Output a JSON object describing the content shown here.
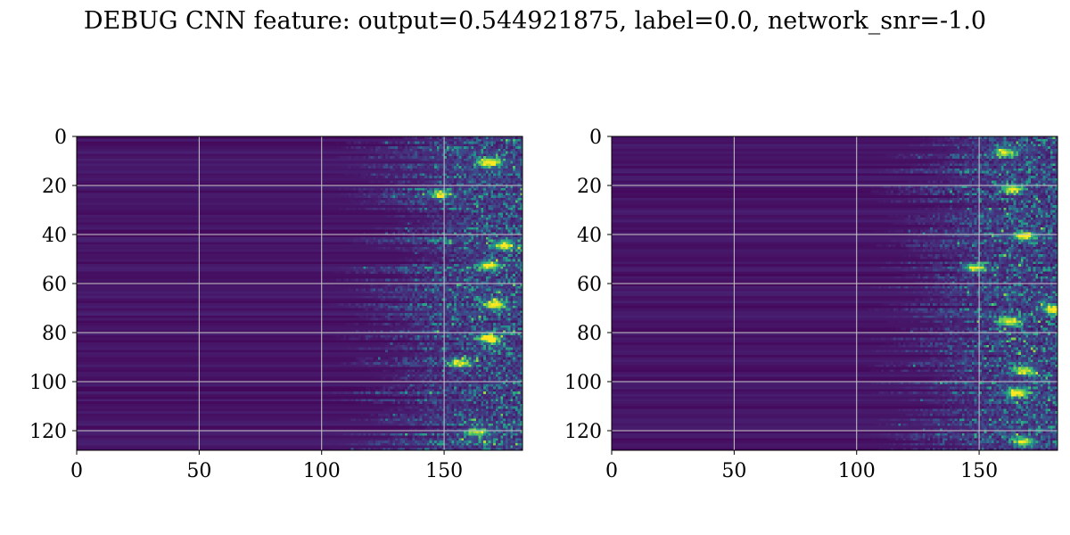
{
  "title": "DEBUG CNN feature: output=0.544921875, label=0.0, network_snr=-1.0",
  "colormap": "viridis",
  "colors": {
    "background": "#ffffff",
    "grid": "#c8c8c8",
    "axis": "#000000",
    "cmap_low": "#440154",
    "cmap_mid": "#21918c",
    "cmap_high": "#fde725"
  },
  "chart_data": [
    {
      "type": "heatmap",
      "title": "",
      "xlabel": "",
      "ylabel": "",
      "xlim": [
        0,
        182
      ],
      "ylim": [
        128,
        0
      ],
      "n_cols": 182,
      "n_rows": 128,
      "y_axis_inverted": true,
      "grid": true,
      "xticks": [
        0,
        50,
        100,
        150
      ],
      "yticks": [
        0,
        20,
        40,
        60,
        80,
        100,
        120
      ],
      "onset_col": 118,
      "hotspots": [
        {
          "row": 10,
          "col": 168,
          "value": 0.95
        },
        {
          "row": 23,
          "col": 148,
          "value": 0.7
        },
        {
          "row": 44,
          "col": 174,
          "value": 0.8
        },
        {
          "row": 52,
          "col": 168,
          "value": 0.85
        },
        {
          "row": 68,
          "col": 170,
          "value": 0.9
        },
        {
          "row": 82,
          "col": 168,
          "value": 1.0
        },
        {
          "row": 92,
          "col": 156,
          "value": 0.75
        },
        {
          "row": 120,
          "col": 163,
          "value": 0.7
        }
      ]
    },
    {
      "type": "heatmap",
      "title": "",
      "xlabel": "",
      "ylabel": "",
      "xlim": [
        0,
        182
      ],
      "ylim": [
        128,
        0
      ],
      "n_cols": 182,
      "n_rows": 128,
      "y_axis_inverted": true,
      "grid": true,
      "xticks": [
        0,
        50,
        100,
        150
      ],
      "yticks": [
        0,
        20,
        40,
        60,
        80,
        100,
        120
      ],
      "onset_col": 120,
      "hotspots": [
        {
          "row": 6,
          "col": 160,
          "value": 0.75
        },
        {
          "row": 21,
          "col": 163,
          "value": 0.85
        },
        {
          "row": 40,
          "col": 168,
          "value": 0.8
        },
        {
          "row": 53,
          "col": 148,
          "value": 0.75
        },
        {
          "row": 70,
          "col": 180,
          "value": 0.9
        },
        {
          "row": 75,
          "col": 162,
          "value": 0.85
        },
        {
          "row": 95,
          "col": 168,
          "value": 0.8
        },
        {
          "row": 104,
          "col": 165,
          "value": 0.95
        },
        {
          "row": 124,
          "col": 168,
          "value": 0.75
        }
      ]
    }
  ]
}
